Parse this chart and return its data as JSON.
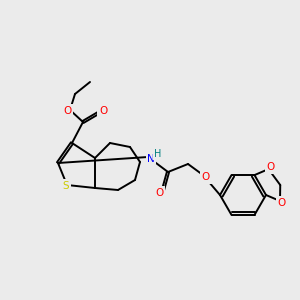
{
  "bg_color": "#ebebeb",
  "atom_colors": {
    "S": "#cccc00",
    "O": "#ff0000",
    "N": "#0000ff",
    "H_on_N": "#008080",
    "C": "#000000"
  }
}
